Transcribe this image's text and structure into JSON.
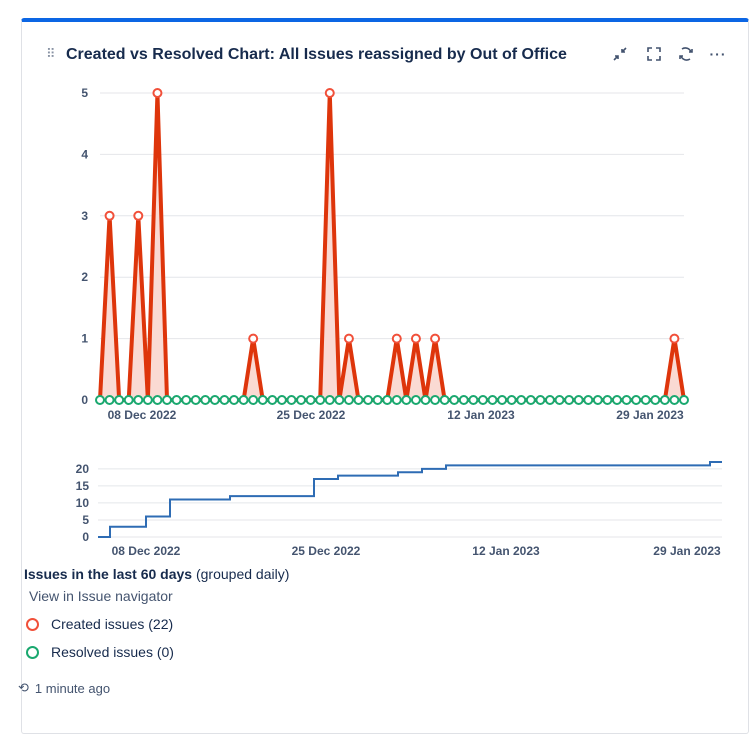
{
  "gadget": {
    "title": "Created vs Resolved Chart: All Issues reassigned by Out of Office",
    "icons": [
      "minimize-icon",
      "fullscreen-icon",
      "refresh-icon",
      "more-icon"
    ],
    "accent": "#0c66e4"
  },
  "chart_data": [
    {
      "type": "area",
      "x_tick_labels": [
        "08 Dec 2022",
        "25 Dec 2022",
        "12 Jan 2023",
        "29 Jan 2023"
      ],
      "ylim": [
        0,
        5
      ],
      "y_ticks": [
        0,
        1,
        2,
        3,
        4,
        5
      ],
      "grid": true,
      "series": [
        {
          "name": "Created issues",
          "color": "#de350b",
          "values": [
            0,
            3,
            0,
            0,
            3,
            0,
            5,
            0,
            0,
            0,
            0,
            0,
            0,
            0,
            0,
            0,
            1,
            0,
            0,
            0,
            0,
            0,
            0,
            0,
            5,
            0,
            1,
            0,
            0,
            0,
            0,
            1,
            0,
            1,
            0,
            1,
            0,
            0,
            0,
            0,
            0,
            0,
            0,
            0,
            0,
            0,
            0,
            0,
            0,
            0,
            0,
            0,
            0,
            0,
            0,
            0,
            0,
            0,
            0,
            0,
            1,
            0
          ]
        },
        {
          "name": "Resolved issues",
          "color": "#00a06b",
          "values": [
            0,
            0,
            0,
            0,
            0,
            0,
            0,
            0,
            0,
            0,
            0,
            0,
            0,
            0,
            0,
            0,
            0,
            0,
            0,
            0,
            0,
            0,
            0,
            0,
            0,
            0,
            0,
            0,
            0,
            0,
            0,
            0,
            0,
            0,
            0,
            0,
            0,
            0,
            0,
            0,
            0,
            0,
            0,
            0,
            0,
            0,
            0,
            0,
            0,
            0,
            0,
            0,
            0,
            0,
            0,
            0,
            0,
            0,
            0,
            0,
            0,
            0
          ]
        }
      ]
    },
    {
      "type": "line",
      "x_tick_labels": [
        "08 Dec 2022",
        "25 Dec 2022",
        "12 Jan 2023",
        "29 Jan 2023"
      ],
      "ylim": [
        0,
        22
      ],
      "y_ticks": [
        0,
        5,
        10,
        15,
        20
      ],
      "grid": true,
      "series": [
        {
          "color": "#2e6cb4",
          "values": [
            0,
            3,
            3,
            3,
            6,
            6,
            11,
            11,
            11,
            11,
            11,
            12,
            12,
            12,
            12,
            12,
            12,
            12,
            17,
            17,
            18,
            18,
            18,
            18,
            18,
            19,
            19,
            20,
            20,
            21,
            21,
            21,
            21,
            21,
            21,
            21,
            21,
            21,
            21,
            21,
            21,
            21,
            21,
            21,
            21,
            21,
            21,
            21,
            21,
            21,
            21,
            22,
            22
          ]
        }
      ]
    }
  ],
  "legend": {
    "title": "Issues in the last 60 days",
    "grouping": "(grouped daily)",
    "link": "View in Issue navigator",
    "items": [
      {
        "label": "Created issues (22)",
        "color": "#f1503a"
      },
      {
        "label": "Resolved issues (0)",
        "color": "#1aa86f"
      }
    ]
  },
  "footer": {
    "updated": "1 minute ago"
  }
}
